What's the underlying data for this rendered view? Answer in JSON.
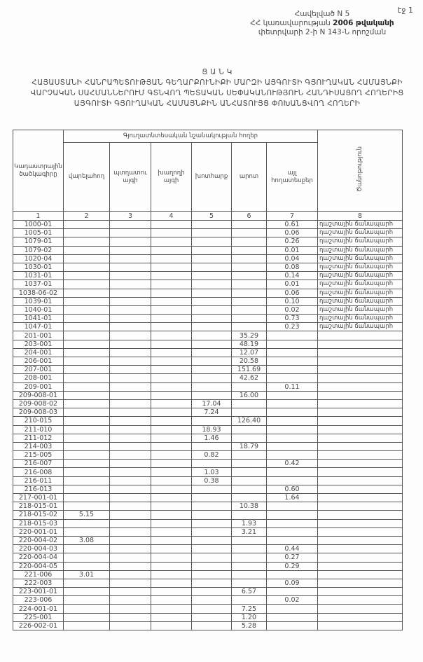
{
  "page_label": "էջ 1",
  "annex": {
    "line1": "Հավելված N 5",
    "line2_pre": "ՀՀ կառավարության ",
    "line2_bold": "2006 թվականի",
    "line3": "փետրվարի 2-ի N 143-Ն որոշման"
  },
  "title": {
    "heading": "Ց Ա Ն Կ",
    "body": "ՀԱՅԱՍՏԱՆԻ ՀԱՆՐԱՊԵՏՈՒԹՅԱՆ ԳԵՂԱՐՔՈՒՆԻՔԻ ՄԱՐԶԻ ԱՅԳՈՒՏԻ ԳՅՈՒՂԱԿԱՆ ՀԱՄԱՅՆՔԻ ՎԱՐՉԱԿԱՆ ՍԱՀՄԱՆՆԵՐՈՒՄ ԳՏՆՎՈՂ ՊԵՏԱԿԱՆ ՍԵՓԱԿԱՆՈՒԹՅՈՒՆ ՀԱՆԴԻՍԱՑՈՂ ՀՈՂԵՐԻՑ ԱՅԳՈՒՏԻ ԳՅՈՒՂԱԿԱՆ ՀԱՄԱՅՆՔԻՆ ԱՆՀԱՏՈՒՅՑ ՓՈԽԱՆՑՎՈՂ ՀՈՂԵՐԻ"
  },
  "table": {
    "col_code": "Կադաստրային ծածկագիրը",
    "group_header": "Գյուղատնտեսական նշանակության հողեր",
    "columns": [
      "վարելահող",
      "պտղատու այգի",
      "խաղողի այգի",
      "խոտհարք",
      "արոտ",
      "այլ հողատեսքեր"
    ],
    "col_note": "Ծանոթություն",
    "numbers": [
      "1",
      "2",
      "3",
      "4",
      "5",
      "6",
      "7",
      "8"
    ],
    "rows": [
      {
        "code": "1000-01",
        "c7": "0.61",
        "note": "դաշտային ճանապարհ"
      },
      {
        "code": "1005-01",
        "c7": "0.06",
        "note": "դաշտային ճանապարհ"
      },
      {
        "code": "1079-01",
        "c7": "0.26",
        "note": "դաշտային ճանապարհ"
      },
      {
        "code": "1079-02",
        "c7": "0.01",
        "note": "դաշտային ճանապարհ"
      },
      {
        "code": "1020-04",
        "c7": "0.04",
        "note": "դաշտային ճանապարհ"
      },
      {
        "code": "1030-01",
        "c7": "0.08",
        "note": "դաշտային ճանապարհ"
      },
      {
        "code": "1031-01",
        "c7": "0.14",
        "note": "դաշտային ճանապարհ"
      },
      {
        "code": "1037-01",
        "c7": "0.01",
        "note": "դաշտային ճանապարհ"
      },
      {
        "code": "1038-06-02",
        "c7": "0.06",
        "note": "դաշտային ճանապարհ"
      },
      {
        "code": "1039-01",
        "c7": "0.10",
        "note": "դաշտային ճանապարհ"
      },
      {
        "code": "1040-01",
        "c7": "0.02",
        "note": "դաշտային ճանապարհ"
      },
      {
        "code": "1041-01",
        "c7": "0.73",
        "note": "դաշտային ճանապարհ"
      },
      {
        "code": "1047-01",
        "c7": "0.23",
        "note": "դաշտային ճանապարհ"
      },
      {
        "code": "201-001",
        "c6": "35.29"
      },
      {
        "code": "203-001",
        "c6": "48.19"
      },
      {
        "code": "204-001",
        "c6": "12.07"
      },
      {
        "code": "206-001",
        "c6": "20.58"
      },
      {
        "code": "207-001",
        "c6": "151.69"
      },
      {
        "code": "208-001",
        "c6": "42.62"
      },
      {
        "code": "209-001",
        "c7": "0.11"
      },
      {
        "code": "209-008-01",
        "c6": "16.00"
      },
      {
        "code": "209-008-02",
        "c5": "17.04"
      },
      {
        "code": "209-008-03",
        "c5": "7.24"
      },
      {
        "code": "210-015",
        "c6": "126.40"
      },
      {
        "code": "211-010",
        "c5": "18.93"
      },
      {
        "code": "211-012",
        "c5": "1.46"
      },
      {
        "code": "214-003",
        "c6": "18.79"
      },
      {
        "code": "215-005",
        "c5": "0.82"
      },
      {
        "code": "216-007",
        "c7": "0.42"
      },
      {
        "code": "216-008",
        "c5": "1.03"
      },
      {
        "code": "216-011",
        "c5": "0.38"
      },
      {
        "code": "216-013",
        "c7": "0.60"
      },
      {
        "code": "217-001-01",
        "c7": "1.64"
      },
      {
        "code": "218-015-01",
        "c6": "10.38"
      },
      {
        "code": "218-015-02",
        "c2": "5.15"
      },
      {
        "code": "218-015-03",
        "c6": "1.93"
      },
      {
        "code": "220-001-01",
        "c6": "3.21"
      },
      {
        "code": "220-004-02",
        "c2": "3.08"
      },
      {
        "code": "220-004-03",
        "c7": "0.44"
      },
      {
        "code": "220-004-04",
        "c7": "0.27"
      },
      {
        "code": "220-004-05",
        "c7": "0.29"
      },
      {
        "code": "221-006",
        "c2": "3.01"
      },
      {
        "code": "222-003",
        "c7": "0.09"
      },
      {
        "code": "223-001-01",
        "c6": "6.57"
      },
      {
        "code": "223-006",
        "c7": "0.02"
      },
      {
        "code": "224-001-01",
        "c6": "7.25"
      },
      {
        "code": "225-001",
        "c6": "1.20"
      },
      {
        "code": "226-002-01",
        "c6": "5.28"
      }
    ]
  }
}
